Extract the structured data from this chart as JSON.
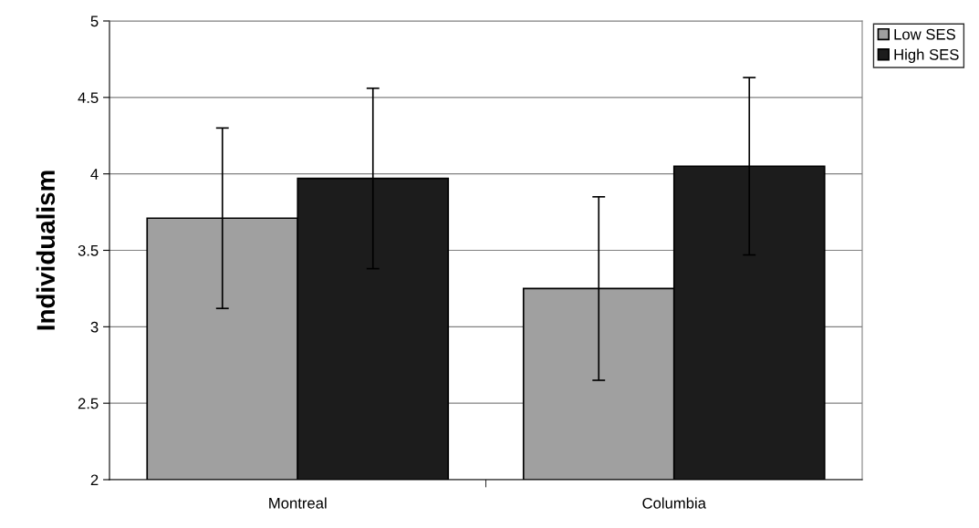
{
  "chart_data": {
    "type": "bar",
    "ylabel": "Individualism",
    "categories": [
      "Montreal",
      "Columbia"
    ],
    "series": [
      {
        "name": "Low SES",
        "color": "#a0a0a0",
        "values": [
          3.71,
          3.25
        ],
        "errors": [
          0.59,
          0.6
        ]
      },
      {
        "name": "High SES",
        "color": "#1c1c1c",
        "values": [
          3.97,
          4.05
        ],
        "errors": [
          0.59,
          0.58
        ]
      }
    ],
    "ylim": [
      2,
      5
    ],
    "yticks": [
      2,
      2.5,
      3,
      3.5,
      4,
      4.5,
      5
    ],
    "grid": "y",
    "legend": "top right"
  }
}
